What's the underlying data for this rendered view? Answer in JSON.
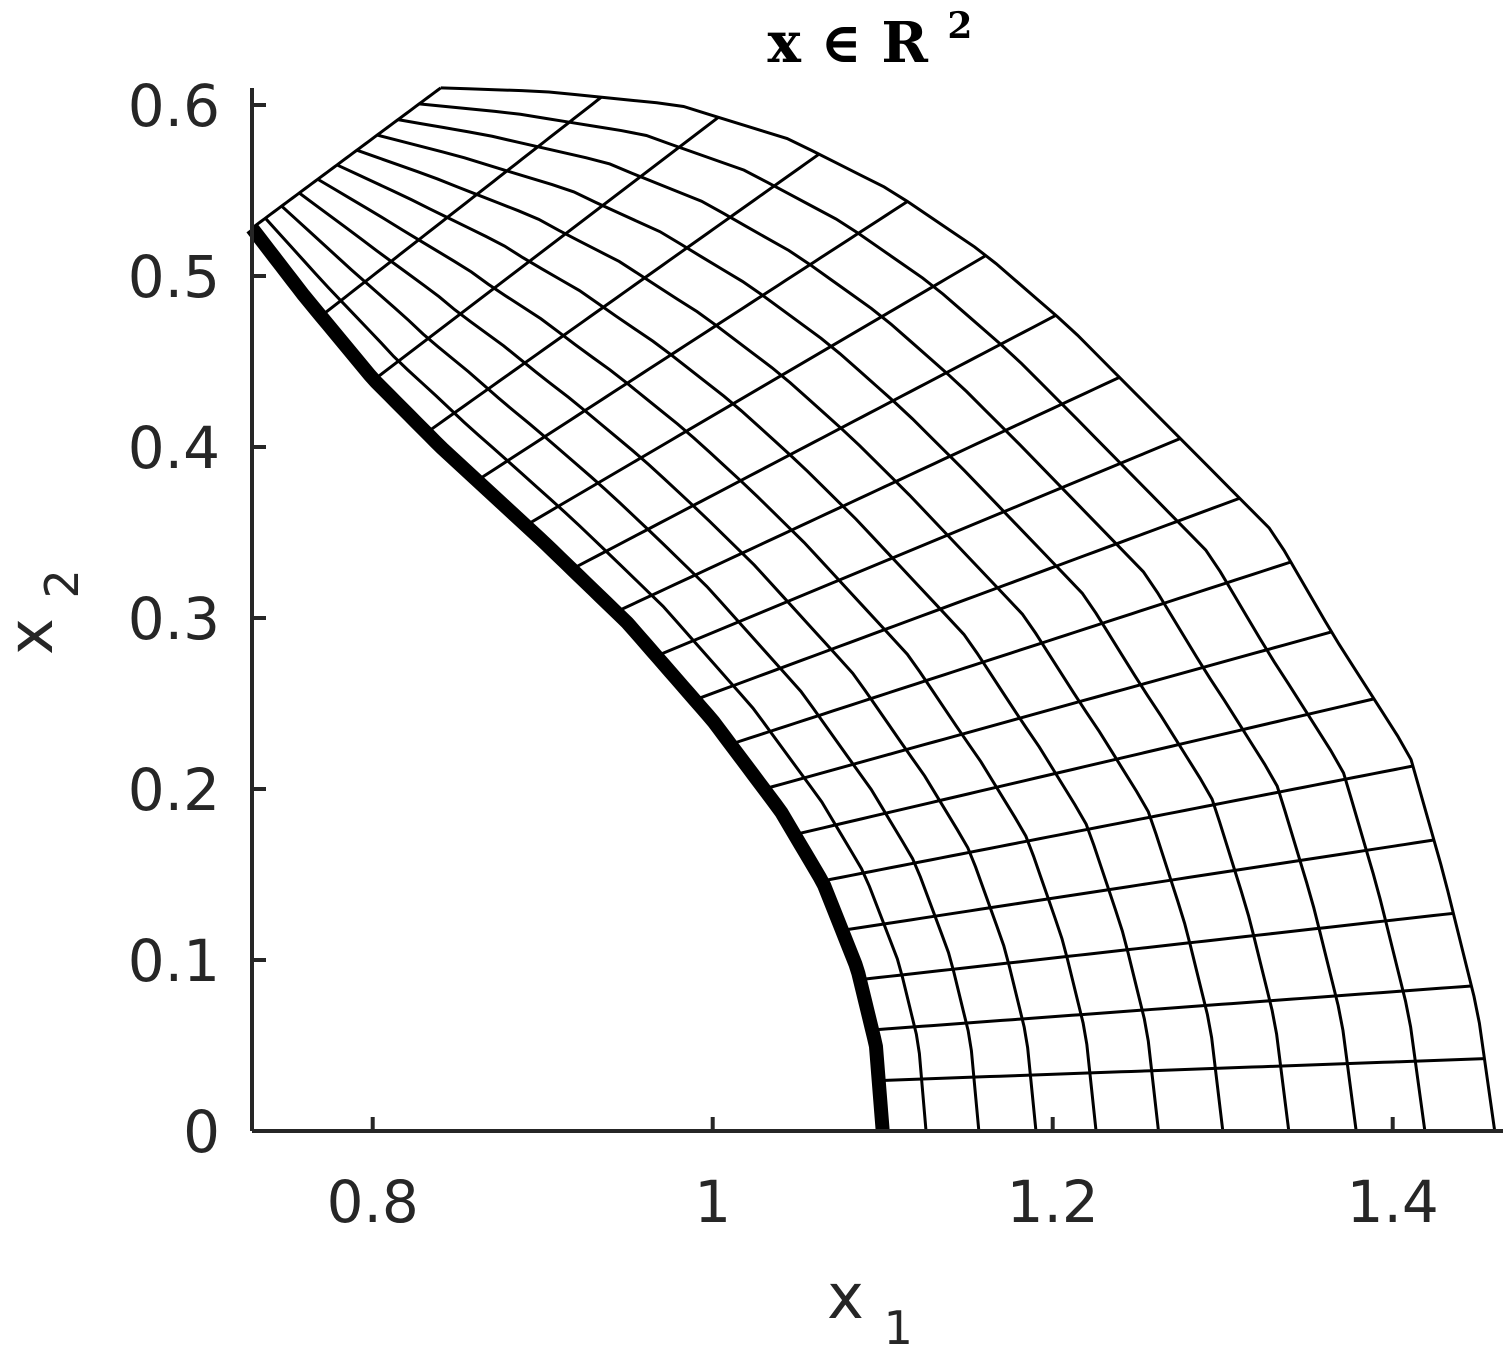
{
  "chart_data": {
    "type": "line",
    "title": {
      "main": "x ∈ R",
      "superscript": "2"
    },
    "xlabel": {
      "main": "x",
      "subscript": "1"
    },
    "ylabel": {
      "main": "x",
      "subscript": "2"
    },
    "xlim": [
      0.729,
      1.46
    ],
    "ylim": [
      0,
      0.61
    ],
    "xticks": [
      {
        "value": 0.8,
        "label": "0.8"
      },
      {
        "value": 1.0,
        "label": "1"
      },
      {
        "value": 1.2,
        "label": "1.2"
      },
      {
        "value": 1.4,
        "label": "1.4"
      }
    ],
    "yticks": [
      {
        "value": 0.0,
        "label": "0"
      },
      {
        "value": 0.1,
        "label": "0.1"
      },
      {
        "value": 0.2,
        "label": "0.2"
      },
      {
        "value": 0.3,
        "label": "0.3"
      },
      {
        "value": 0.4,
        "label": "0.4"
      },
      {
        "value": 0.5,
        "label": "0.5"
      },
      {
        "value": 0.6,
        "label": "0.6"
      }
    ],
    "grid": false,
    "mesh": {
      "description_of_family": "curvilinear mesh over an annular sector",
      "inner_boundary": [
        [
          0.729,
          0.528
        ],
        [
          0.76,
          0.488
        ],
        [
          0.8,
          0.44
        ],
        [
          0.84,
          0.4
        ],
        [
          0.9,
          0.345
        ],
        [
          0.95,
          0.297
        ],
        [
          1.0,
          0.24
        ],
        [
          1.04,
          0.187
        ],
        [
          1.065,
          0.145
        ],
        [
          1.085,
          0.095
        ],
        [
          1.096,
          0.05
        ],
        [
          1.1,
          0.0
        ]
      ],
      "outer_boundary": [
        [
          0.84,
          0.61
        ],
        [
          0.9,
          0.608
        ],
        [
          0.98,
          0.6
        ],
        [
          1.045,
          0.58
        ],
        [
          1.105,
          0.55
        ],
        [
          1.16,
          0.513
        ],
        [
          1.21,
          0.47
        ],
        [
          1.27,
          0.41
        ],
        [
          1.33,
          0.35
        ],
        [
          1.365,
          0.29
        ],
        [
          1.41,
          0.22
        ],
        [
          1.43,
          0.15
        ],
        [
          1.45,
          0.07
        ],
        [
          1.46,
          0.0
        ]
      ],
      "left_edge": [
        [
          0.729,
          0.528
        ],
        [
          0.84,
          0.61
        ]
      ],
      "bottom_edge": [
        [
          1.1,
          0.0
        ],
        [
          1.46,
          0.0
        ]
      ],
      "n_radial_divisions": 10,
      "n_angular_divisions": 18,
      "stretch_exponent": 0.8,
      "inner_boundary_bold": true
    }
  }
}
